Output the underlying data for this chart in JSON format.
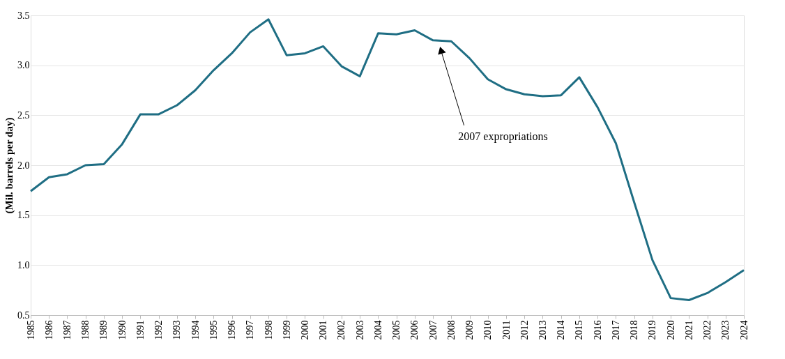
{
  "chart_data": {
    "type": "line",
    "ylabel": "(Mil. barrels  per day)",
    "categories": [
      "1985",
      "1986",
      "1987",
      "1988",
      "1989",
      "1990",
      "1991",
      "1992",
      "1993",
      "1994",
      "1995",
      "1996",
      "1997",
      "1998",
      "1999",
      "2000",
      "2001",
      "2002",
      "2003",
      "2004",
      "2005",
      "2006",
      "2007",
      "2008",
      "2009",
      "2010",
      "2011",
      "2012",
      "2013",
      "2014",
      "2015",
      "2016",
      "2017",
      "2018",
      "2019",
      "2020",
      "2021",
      "2022",
      "2023",
      "2024"
    ],
    "series": [
      {
        "color": "#1f6e84",
        "values": [
          1.74,
          1.88,
          1.91,
          2.0,
          2.01,
          2.21,
          2.51,
          2.51,
          2.6,
          2.75,
          2.95,
          3.12,
          3.33,
          3.46,
          3.1,
          3.12,
          3.19,
          2.99,
          2.89,
          3.32,
          3.31,
          3.35,
          3.25,
          3.24,
          3.07,
          2.86,
          2.76,
          2.71,
          2.69,
          2.7,
          2.88,
          2.58,
          2.22,
          1.63,
          1.05,
          0.67,
          0.65,
          0.72,
          0.83,
          0.95
        ]
      }
    ],
    "ylim": [
      0.5,
      3.5
    ],
    "yticks": [
      0.5,
      {
        "value": 1,
        "label": "1.0"
      },
      1.5,
      {
        "value": 2,
        "label": "2.0"
      },
      2.5,
      {
        "value": 3,
        "label": "3.0"
      },
      3.5
    ],
    "grid": "y",
    "marker": "none",
    "line_style": "solid",
    "annotations": [
      "2007  expropriations"
    ]
  }
}
